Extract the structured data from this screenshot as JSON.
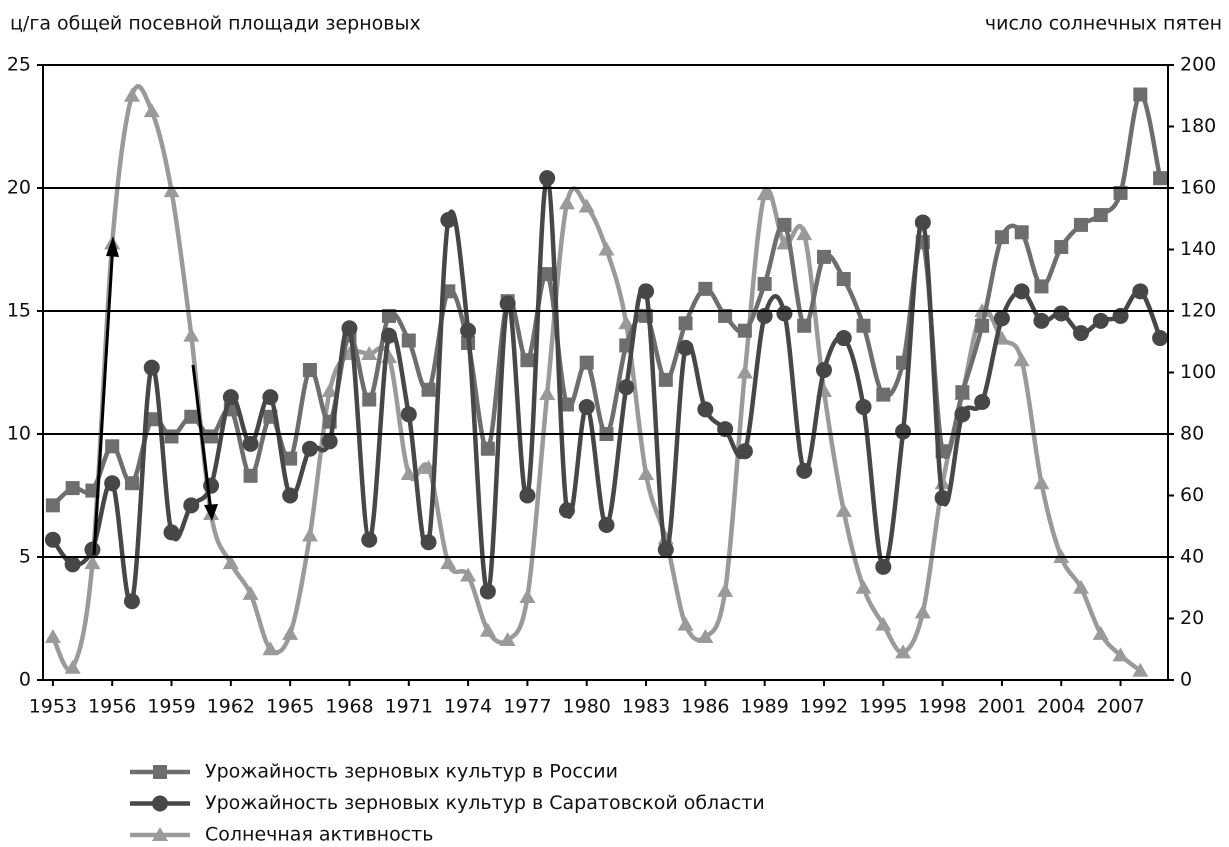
{
  "chart_data": {
    "type": "line",
    "y_label": "ц/га общей посевной площади зерновых",
    "y2_label": "число солнечных пятен",
    "x": [
      1953,
      1954,
      1955,
      1956,
      1957,
      1958,
      1959,
      1960,
      1961,
      1962,
      1963,
      1964,
      1965,
      1966,
      1967,
      1968,
      1969,
      1970,
      1971,
      1972,
      1973,
      1974,
      1975,
      1976,
      1977,
      1978,
      1979,
      1980,
      1981,
      1982,
      1983,
      1984,
      1985,
      1986,
      1987,
      1988,
      1989,
      1990,
      1991,
      1992,
      1993,
      1994,
      1995,
      1996,
      1997,
      1998,
      1999,
      2000,
      2001,
      2002,
      2003,
      2004,
      2005,
      2006,
      2007,
      2008,
      2009
    ],
    "xlim": [
      1952.5,
      2009.4
    ],
    "xticks": [
      1953,
      1956,
      1959,
      1962,
      1965,
      1968,
      1971,
      1974,
      1977,
      1980,
      1983,
      1986,
      1989,
      1992,
      1995,
      1998,
      2001,
      2004,
      2007
    ],
    "ylim": [
      0,
      25
    ],
    "yticks": [
      0,
      5,
      10,
      15,
      20,
      25
    ],
    "y2lim": [
      0,
      200
    ],
    "y2ticks": [
      0,
      20,
      40,
      60,
      80,
      100,
      120,
      140,
      160,
      180,
      200
    ],
    "grid": true,
    "series": [
      {
        "name": "Урожайность зерновых культур в России",
        "color": "#6e6e6e",
        "marker": "square",
        "values": [
          7.1,
          7.8,
          7.7,
          9.5,
          8.0,
          10.6,
          9.9,
          10.7,
          9.9,
          11.0,
          8.3,
          10.7,
          9.0,
          12.6,
          10.5,
          14.0,
          11.4,
          14.8,
          13.8,
          11.8,
          15.8,
          13.7,
          9.4,
          15.4,
          13.0,
          16.5,
          11.2,
          12.9,
          10.0,
          13.6,
          14.8,
          12.2,
          14.5,
          15.9,
          14.8,
          14.2,
          16.1,
          18.5,
          14.4,
          17.2,
          16.3,
          14.4,
          11.6,
          12.9,
          17.8,
          9.3,
          11.7,
          14.4,
          18.0,
          18.2,
          16.0,
          17.6,
          18.5,
          18.9,
          19.8,
          23.8,
          20.4
        ]
      },
      {
        "name": "Урожайность зерновых культур в Саратовской области",
        "color": "#474747",
        "marker": "circle",
        "values": [
          5.7,
          4.7,
          5.3,
          8.0,
          3.2,
          12.7,
          6.0,
          7.1,
          7.9,
          11.5,
          9.6,
          11.5,
          7.5,
          9.4,
          9.7,
          14.3,
          5.7,
          14.0,
          10.8,
          5.6,
          18.7,
          14.2,
          3.6,
          15.3,
          7.5,
          20.4,
          6.9,
          11.1,
          6.3,
          11.9,
          15.8,
          5.3,
          13.5,
          11.0,
          10.2,
          9.3,
          14.8,
          14.9,
          8.5,
          12.6,
          13.9,
          11.1,
          4.6,
          10.1,
          18.6,
          7.4,
          10.8,
          11.3,
          14.7,
          15.8,
          14.6,
          14.9,
          14.1,
          14.6,
          14.8,
          15.8,
          13.9
        ]
      },
      {
        "name": "Солнечная активность",
        "color": "#9a9a9a",
        "marker": "triangle",
        "axis": "y2",
        "values": [
          14,
          4,
          38,
          142,
          190,
          185,
          159,
          112,
          54,
          38,
          28,
          10,
          15,
          47,
          94,
          106,
          106,
          105,
          67,
          69,
          38,
          34,
          16,
          13,
          27,
          93,
          155,
          154,
          140,
          116,
          67,
          46,
          18,
          14,
          29,
          100,
          158,
          142,
          145,
          94,
          55,
          30,
          18,
          9,
          22,
          64,
          93,
          120,
          111,
          104,
          64,
          40,
          30,
          15,
          8,
          3,
          null
        ]
      }
    ]
  }
}
